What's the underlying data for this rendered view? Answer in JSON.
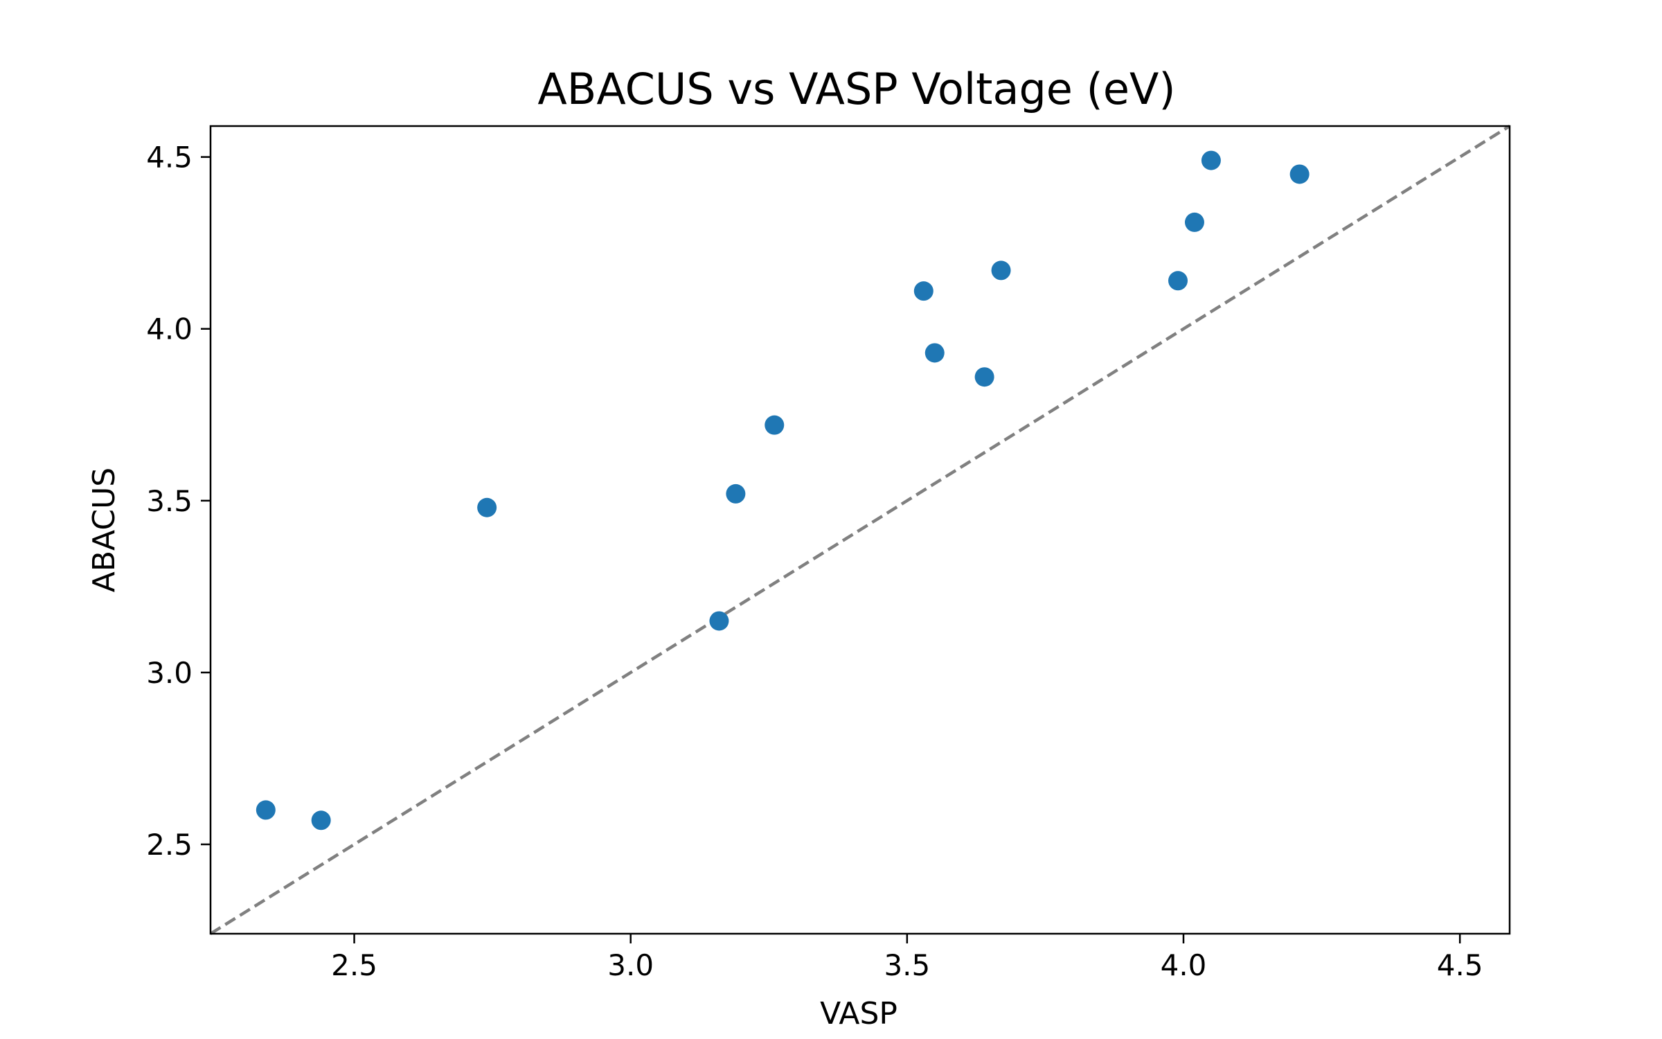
{
  "chart_data": {
    "type": "scatter",
    "title": "ABACUS vs VASP Voltage (eV)",
    "xlabel": "VASP",
    "ylabel": "ABACUS",
    "xlim": [
      2.24,
      4.59
    ],
    "ylim": [
      2.24,
      4.59
    ],
    "xticks": [
      2.5,
      3.0,
      3.5,
      4.0,
      4.5
    ],
    "yticks": [
      2.5,
      3.0,
      3.5,
      4.0,
      4.5
    ],
    "xtick_labels": [
      "2.5",
      "3.0",
      "3.5",
      "4.0",
      "4.5"
    ],
    "ytick_labels": [
      "2.5",
      "3.0",
      "3.5",
      "4.0",
      "4.5"
    ],
    "grid": false,
    "reference_line": {
      "style": "dashed",
      "color": "#808080",
      "from": [
        2.24,
        2.24
      ],
      "to": [
        4.59,
        4.59
      ]
    },
    "series": [
      {
        "color": "#1f77b4",
        "x": [
          2.34,
          2.44,
          2.74,
          3.16,
          3.19,
          3.26,
          3.53,
          3.55,
          3.64,
          3.67,
          3.99,
          4.02,
          4.05,
          4.21
        ],
        "y": [
          2.6,
          2.57,
          3.48,
          3.15,
          3.52,
          3.72,
          4.11,
          3.93,
          3.86,
          4.17,
          4.14,
          4.31,
          4.49,
          4.45
        ]
      }
    ]
  }
}
